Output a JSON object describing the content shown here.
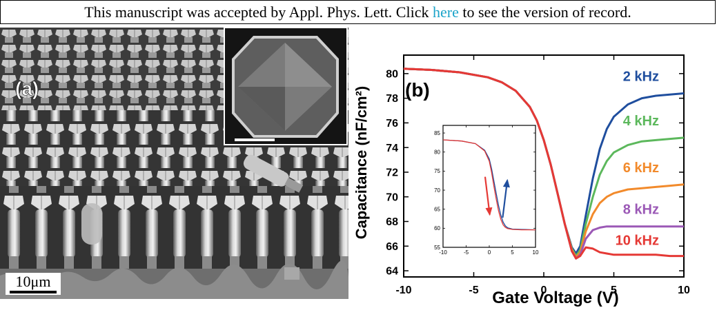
{
  "header": {
    "prefix": "This manuscript was accepted by Appl. Phys. Lett. Click ",
    "link": "here",
    "suffix": " to see the version of record.",
    "link_color": "#1ba3c9"
  },
  "panel_a": {
    "label": "(a)",
    "scale_label": "10μm"
  },
  "chart_data": [
    {
      "type": "line",
      "panel_label": "(b)",
      "xlabel": "Gate Voltage (V)",
      "ylabel": "Capacitance (nF/cm²)",
      "xlim": [
        -10,
        10
      ],
      "ylim": [
        63.5,
        81.5
      ],
      "xticks": [
        -10,
        -5,
        0,
        5,
        10
      ],
      "yticks": [
        64,
        66,
        68,
        70,
        72,
        74,
        76,
        78,
        80
      ],
      "grid": false,
      "legend": "inline labels at right",
      "series": [
        {
          "name": "2 kHz",
          "color": "#1f4e9e",
          "x": [
            -10,
            -8,
            -6,
            -4,
            -3,
            -2,
            -1,
            -0.5,
            0,
            0.5,
            1,
            1.5,
            2,
            2.3,
            2.6,
            3,
            3.5,
            4,
            4.5,
            5,
            6,
            7,
            8,
            9,
            10
          ],
          "y": [
            80.4,
            80.3,
            80.1,
            79.7,
            79.3,
            78.6,
            77.3,
            76.2,
            74.6,
            72.6,
            70.2,
            67.8,
            65.9,
            65.4,
            66.0,
            68.5,
            71.5,
            73.9,
            75.5,
            76.5,
            77.5,
            78.0,
            78.2,
            78.3,
            78.4
          ]
        },
        {
          "name": "4 kHz",
          "color": "#5cb85c",
          "x": [
            -10,
            -8,
            -6,
            -4,
            -3,
            -2,
            -1,
            -0.5,
            0,
            0.5,
            1,
            1.5,
            2,
            2.3,
            2.6,
            3,
            3.5,
            4,
            4.5,
            5,
            6,
            7,
            8,
            9,
            10
          ],
          "y": [
            80.4,
            80.3,
            80.1,
            79.7,
            79.3,
            78.6,
            77.3,
            76.2,
            74.6,
            72.6,
            70.2,
            67.8,
            65.8,
            65.2,
            65.7,
            67.8,
            70.0,
            71.8,
            72.9,
            73.6,
            74.2,
            74.5,
            74.6,
            74.7,
            74.8
          ]
        },
        {
          "name": "6 kHz",
          "color": "#f28a2b",
          "x": [
            -10,
            -8,
            -6,
            -4,
            -3,
            -2,
            -1,
            -0.5,
            0,
            0.5,
            1,
            1.5,
            2,
            2.3,
            2.6,
            3,
            3.5,
            4,
            4.5,
            5,
            6,
            7,
            8,
            9,
            10
          ],
          "y": [
            80.4,
            80.3,
            80.1,
            79.7,
            79.3,
            78.6,
            77.3,
            76.2,
            74.6,
            72.6,
            70.2,
            67.8,
            65.7,
            65.1,
            65.5,
            67.2,
            68.6,
            69.5,
            70.0,
            70.3,
            70.6,
            70.7,
            70.8,
            70.9,
            71.0
          ]
        },
        {
          "name": "8 kHz",
          "color": "#9b59b6",
          "x": [
            -10,
            -8,
            -6,
            -4,
            -3,
            -2,
            -1,
            -0.5,
            0,
            0.5,
            1,
            1.5,
            2,
            2.3,
            2.6,
            3,
            3.5,
            4,
            4.5,
            5,
            6,
            7,
            8,
            9,
            10
          ],
          "y": [
            80.4,
            80.3,
            80.1,
            79.7,
            79.3,
            78.6,
            77.3,
            76.2,
            74.6,
            72.6,
            70.2,
            67.8,
            65.6,
            65.0,
            65.3,
            66.6,
            67.3,
            67.5,
            67.6,
            67.6,
            67.6,
            67.6,
            67.6,
            67.6,
            67.6
          ]
        },
        {
          "name": "10 kHz",
          "color": "#e53935",
          "x": [
            -10,
            -8,
            -6,
            -4,
            -3,
            -2,
            -1,
            -0.5,
            0,
            0.5,
            1,
            1.5,
            2,
            2.3,
            2.6,
            3,
            3.5,
            4,
            4.5,
            5,
            6,
            7,
            8,
            9,
            10
          ],
          "y": [
            80.4,
            80.3,
            80.1,
            79.7,
            79.3,
            78.6,
            77.3,
            76.2,
            74.6,
            72.6,
            70.2,
            67.8,
            65.6,
            65.0,
            65.2,
            65.9,
            65.8,
            65.5,
            65.4,
            65.3,
            65.3,
            65.3,
            65.3,
            65.2,
            65.2
          ]
        }
      ]
    },
    {
      "type": "line",
      "role": "inset",
      "xlim": [
        -10,
        10
      ],
      "ylim": [
        55,
        87
      ],
      "xticks": [
        -10,
        -5,
        0,
        5,
        10
      ],
      "yticks": [
        55,
        60,
        65,
        70,
        75,
        80,
        85
      ],
      "grid": false,
      "series": [
        {
          "color": "#1f4e9e",
          "x": [
            -10,
            -6,
            -3,
            -1,
            0,
            0.5,
            1,
            1.5,
            2,
            2.5,
            3,
            3.5,
            4,
            5,
            7,
            10
          ],
          "y": [
            83.2,
            82.9,
            82.2,
            80.5,
            78.2,
            75.6,
            72.4,
            69.1,
            66.0,
            63.4,
            61.6,
            60.6,
            60.1,
            59.8,
            59.7,
            59.6
          ]
        },
        {
          "color": "#e53935",
          "x": [
            -10,
            -6,
            -3,
            -1,
            0,
            0.5,
            1,
            1.5,
            2,
            2.5,
            3,
            3.5,
            4,
            5,
            7,
            10
          ],
          "y": [
            83.2,
            82.9,
            82.2,
            80.3,
            77.6,
            74.6,
            71.0,
            67.6,
            64.6,
            62.3,
            60.9,
            60.2,
            59.9,
            59.7,
            59.6,
            59.6
          ]
        }
      ],
      "arrows": [
        {
          "color": "#e53935",
          "direction": "down"
        },
        {
          "color": "#1f4e9e",
          "direction": "up"
        }
      ]
    }
  ]
}
